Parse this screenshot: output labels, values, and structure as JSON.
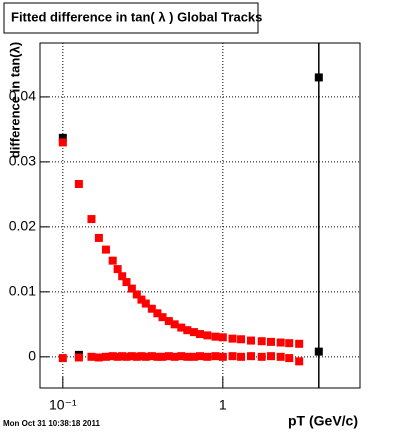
{
  "chart_data": {
    "type": "scatter",
    "title": "Fitted difference in tan( λ )  Global Tracks",
    "x_label": "pT (GeV/c)",
    "y_label": "difference in tan(λ)",
    "footer": "Mon Oct 31 10:38:18 2011",
    "xscale": "log",
    "xlim": [
      0.072,
      7.2
    ],
    "ylim": [
      -0.0048,
      0.0483
    ],
    "xticks": [
      {
        "value": 0.1,
        "label": "10⁻¹"
      },
      1
    ],
    "yticks": [
      0,
      0.01,
      0.02,
      0.03,
      0.04
    ],
    "grid": true,
    "series": [
      {
        "color": "#000000",
        "x": [
          0.1,
          0.126,
          3.98,
          3.98
        ],
        "values": [
          0.0337,
          0.0003,
          0.043,
          0.0008
        ]
      },
      {
        "color": "#ff0000",
        "x": [
          0.1,
          0.126,
          0.151,
          0.168,
          0.186,
          0.205,
          0.22,
          0.235,
          0.25,
          0.27,
          0.29,
          0.31,
          0.33,
          0.36,
          0.39,
          0.42,
          0.46,
          0.5,
          0.55,
          0.6,
          0.66,
          0.72,
          0.8,
          0.9,
          1.0,
          1.15,
          1.3,
          1.5,
          1.75,
          2.0,
          2.3,
          2.6,
          3.0
        ],
        "values": [
          0.033,
          0.0266,
          0.0212,
          0.0183,
          0.0165,
          0.0148,
          0.0135,
          0.0124,
          0.0115,
          0.0105,
          0.0096,
          0.0088,
          0.0082,
          0.0074,
          0.0067,
          0.0061,
          0.0055,
          0.005,
          0.0045,
          0.0041,
          0.0038,
          0.0035,
          0.0033,
          0.0031,
          0.003,
          0.0028,
          0.0027,
          0.0025,
          0.0024,
          0.0023,
          0.0022,
          0.0021,
          0.002
        ]
      },
      {
        "color": "#ff0000",
        "x": [
          0.1,
          0.126,
          0.151,
          0.168,
          0.186,
          0.205,
          0.22,
          0.235,
          0.25,
          0.27,
          0.29,
          0.31,
          0.33,
          0.36,
          0.39,
          0.42,
          0.46,
          0.5,
          0.55,
          0.6,
          0.66,
          0.72,
          0.8,
          0.9,
          1.0,
          1.15,
          1.3,
          1.5,
          1.75,
          2.0,
          2.3,
          2.6,
          3.0
        ],
        "values": [
          -0.0002,
          -0.0001,
          0.0,
          -0.0001,
          0.0,
          0.0001,
          0.0,
          0.0001,
          0.0,
          0.0001,
          0.0,
          0.0001,
          0.0,
          0.0001,
          0.0,
          0.0,
          0.0001,
          0.0,
          0.0001,
          0.0,
          0.0,
          0.0001,
          0.0,
          0.0001,
          0.0,
          0.0001,
          0.0,
          0.0001,
          0.0,
          0.0001,
          0.0,
          -0.0002,
          -0.0007
        ]
      }
    ]
  }
}
